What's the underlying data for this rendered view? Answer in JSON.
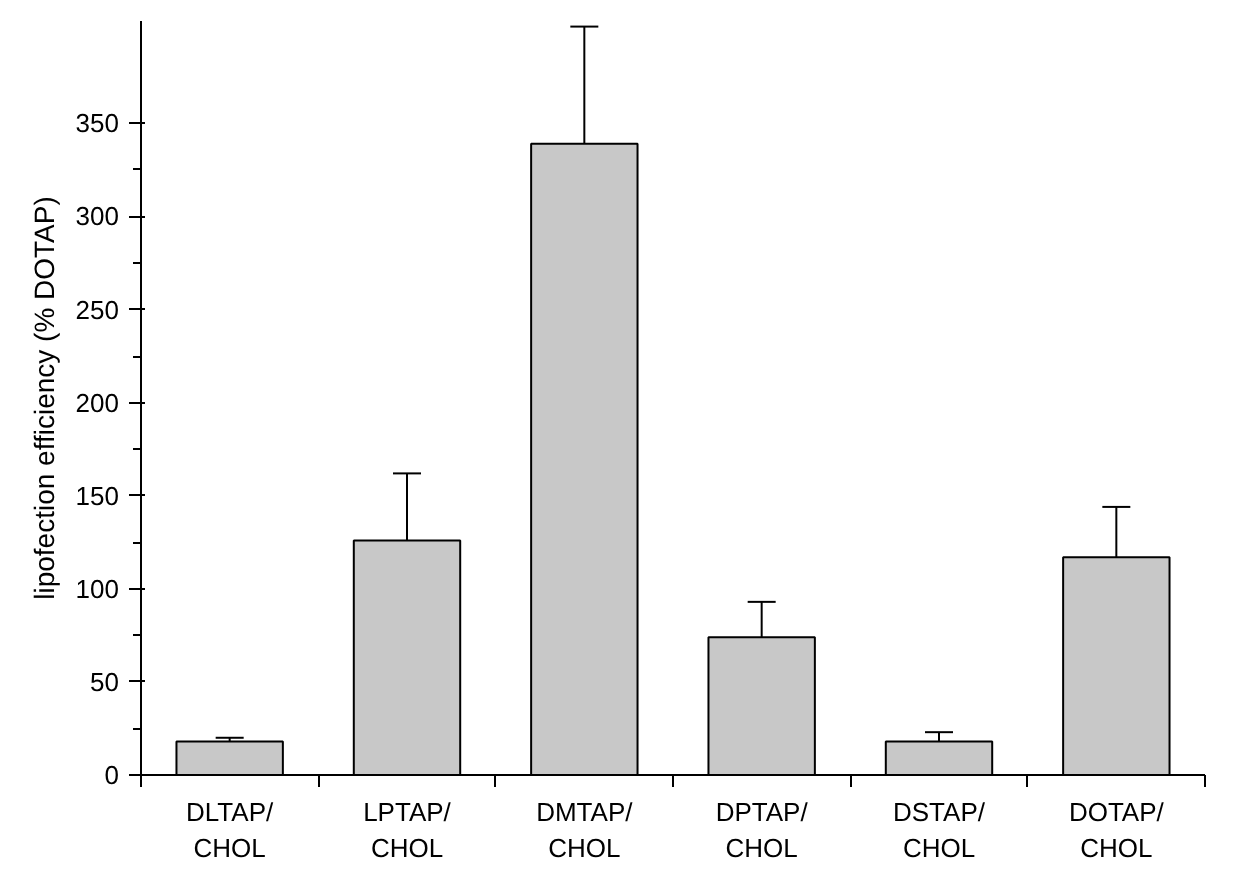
{
  "chart_data": {
    "type": "bar",
    "ylabel": "lipofection efficiency (% DOTAP)",
    "categories": [
      "DLTAP/\nCHOL",
      "LPTAP/\nCHOL",
      "DMTAP/\nCHOL",
      "DPTAP/\nCHOL",
      "DSTAP/\nCHOL",
      "DOTAP/\nCHOL"
    ],
    "values": [
      18,
      126,
      339,
      74,
      18,
      117
    ],
    "errors": [
      2,
      36,
      63,
      19,
      5,
      27
    ],
    "color": "#c8c8c8",
    "ylim": [
      0,
      405
    ],
    "yticks": [
      0,
      50,
      100,
      150,
      200,
      250,
      300,
      350
    ],
    "grid": false
  }
}
